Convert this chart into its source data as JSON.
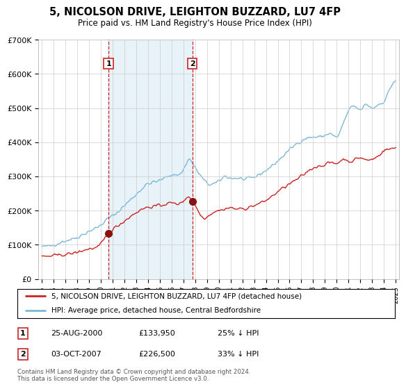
{
  "title": "5, NICOLSON DRIVE, LEIGHTON BUZZARD, LU7 4FP",
  "subtitle": "Price paid vs. HM Land Registry's House Price Index (HPI)",
  "hpi_label": "HPI: Average price, detached house, Central Bedfordshire",
  "property_label": "5, NICOLSON DRIVE, LEIGHTON BUZZARD, LU7 4FP (detached house)",
  "ylabel_ticks": [
    "£0",
    "£100K",
    "£200K",
    "£300K",
    "£400K",
    "£500K",
    "£600K",
    "£700K"
  ],
  "ytick_vals": [
    0,
    100000,
    200000,
    300000,
    400000,
    500000,
    600000,
    700000
  ],
  "ylim": [
    0,
    700000
  ],
  "hpi_color": "#7ab8d9",
  "hpi_fill_color": "#ddeef7",
  "property_color": "#cc2222",
  "marker_color": "#881111",
  "vline_color": "#cc2222",
  "grid_color": "#cccccc",
  "bg_color": "#ffffff",
  "sale1_year": 2000.65,
  "sale1_price": 133950,
  "sale2_year": 2007.75,
  "sale2_price": 226500,
  "transactions": [
    {
      "label": "1",
      "date": "25-AUG-2000",
      "price": "£133,950",
      "pct": "25% ↓ HPI"
    },
    {
      "label": "2",
      "date": "03-OCT-2007",
      "price": "£226,500",
      "pct": "33% ↓ HPI"
    }
  ],
  "footnote1": "Contains HM Land Registry data © Crown copyright and database right 2024.",
  "footnote2": "This data is licensed under the Open Government Licence v3.0.",
  "xtick_years": [
    1995,
    1996,
    1997,
    1998,
    1999,
    2000,
    2001,
    2002,
    2003,
    2004,
    2005,
    2006,
    2007,
    2008,
    2009,
    2010,
    2011,
    2012,
    2013,
    2014,
    2015,
    2016,
    2017,
    2018,
    2019,
    2020,
    2021,
    2022,
    2023,
    2024,
    2025
  ]
}
